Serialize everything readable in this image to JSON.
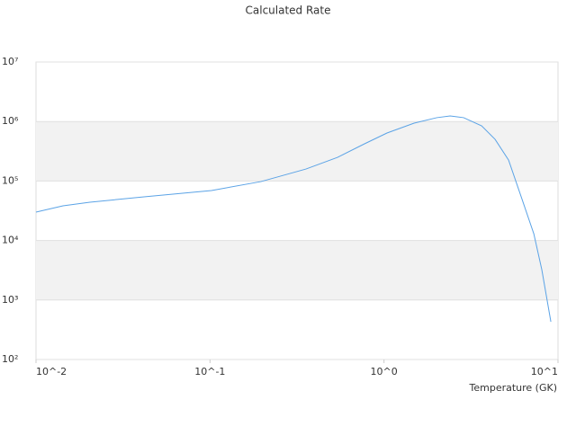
{
  "chart_data": {
    "type": "line",
    "title": "Calculated Rate",
    "x_label": "Temperature (GK)",
    "xscale": "log",
    "yscale": "log",
    "grid": "bands",
    "xlim": [
      0.01,
      10
    ],
    "ylim": [
      100,
      10000000
    ],
    "xticks": [
      {
        "value": 0.01,
        "label": "10^-2"
      },
      {
        "value": 0.1,
        "label": "10^-1"
      },
      {
        "value": 1,
        "label": "10^0"
      },
      {
        "value": 10,
        "label": "10^1"
      }
    ],
    "yticks": [
      {
        "value": 100,
        "label": "10²"
      },
      {
        "value": 1000,
        "label": "10³"
      },
      {
        "value": 10000,
        "label": "10⁴"
      },
      {
        "value": 100000,
        "label": "10⁵"
      },
      {
        "value": 1000000,
        "label": "10⁶"
      },
      {
        "value": 10000000,
        "label": "10⁷"
      }
    ],
    "series": [
      {
        "color": "#5ba3e6",
        "x": [
          0.01,
          0.0143,
          0.0204,
          0.0418,
          0.102,
          0.196,
          0.356,
          0.541,
          0.773,
          1.04,
          1.49,
          2.01,
          2.4,
          2.87,
          3.64,
          4.35,
          5.2,
          6.22,
          7.26,
          8.07,
          9.1
        ],
        "values": [
          30000,
          38300,
          44000,
          54200,
          69200,
          97700,
          159000,
          250000,
          422000,
          641000,
          940000,
          1160000,
          1240000,
          1160000,
          845000,
          501000,
          225000,
          48900,
          13000,
          3240,
          431
        ]
      }
    ]
  }
}
